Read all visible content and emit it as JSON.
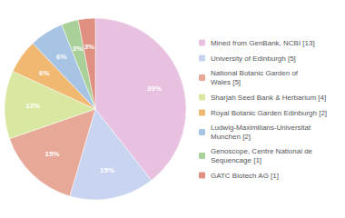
{
  "chart_data": {
    "type": "pie",
    "categories": [
      "Mined from GenBank, NCBI [13]",
      "University of Edinburgh [5]",
      "National Botanic Garden of\nWales [5]",
      "Sharjah Seed Bank & Herbarium [4]",
      "Royal Botanic Garden Edinburgh [2]",
      "Ludwig-Maximilians-Universitat\nMunchen [2]",
      "Genoscope, Centre National de\nSequencage [1]",
      "GATC Biotech AG [1]"
    ],
    "values": [
      39,
      15,
      15,
      12,
      6,
      6,
      3,
      3
    ],
    "value_labels": [
      "39%",
      "15%",
      "15%",
      "12%",
      "6%",
      "6%",
      "3%",
      "3%"
    ],
    "colors": [
      "#e8c0e0",
      "#c8d4f0",
      "#e8a898",
      "#d8e8a0",
      "#f0b870",
      "#a8c4e4",
      "#a8d098",
      "#e09080"
    ],
    "data_labels": true,
    "legend": "right"
  }
}
